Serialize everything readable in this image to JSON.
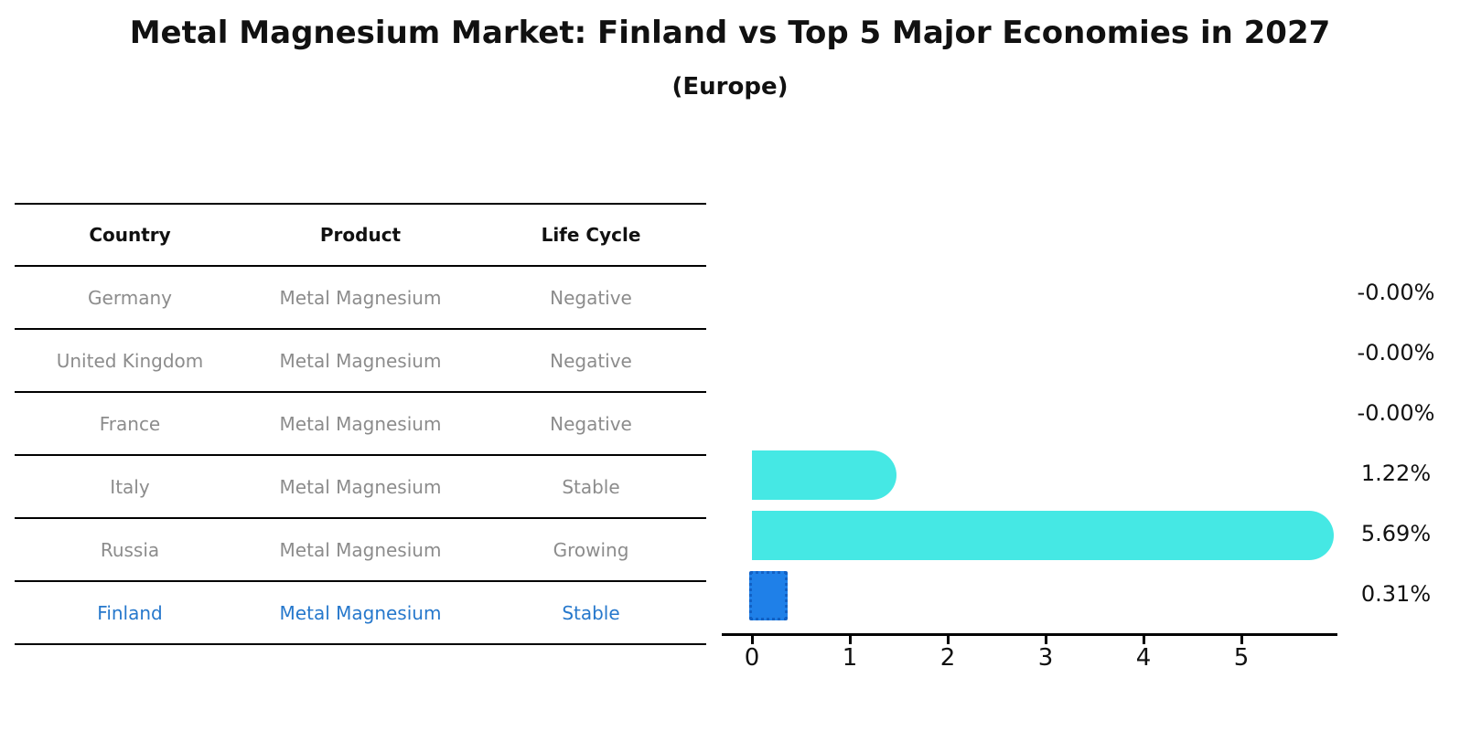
{
  "title": "Metal Magnesium Market: Finland vs Top 5 Major Economies in 2027",
  "subtitle": "(Europe)",
  "table": {
    "headers": [
      "Country",
      "Product",
      "Life Cycle"
    ],
    "rows": [
      {
        "country": "Germany",
        "product": "Metal Magnesium",
        "life_cycle": "Negative",
        "highlight": false
      },
      {
        "country": "United Kingdom",
        "product": "Metal Magnesium",
        "life_cycle": "Negative",
        "highlight": false
      },
      {
        "country": "France",
        "product": "Metal Magnesium",
        "life_cycle": "Negative",
        "highlight": false
      },
      {
        "country": "Italy",
        "product": "Metal Magnesium",
        "life_cycle": "Stable",
        "highlight": false
      },
      {
        "country": "Russia",
        "product": "Metal Magnesium",
        "life_cycle": "Growing",
        "highlight": false
      },
      {
        "country": "Finland",
        "product": "Metal Magnesium",
        "life_cycle": "Stable",
        "highlight": true
      }
    ]
  },
  "chart_data": {
    "type": "bar",
    "orientation": "horizontal",
    "title": "Metal Magnesium Market: Finland vs Top 5 Major Economies in 2027 (Europe)",
    "categories": [
      "Germany",
      "United Kingdom",
      "France",
      "Italy",
      "Russia",
      "Finland"
    ],
    "values": [
      -0.0,
      -0.0,
      -0.0,
      1.22,
      5.69,
      0.31
    ],
    "labels": [
      "-0.00%",
      "-0.00%",
      "-0.00%",
      "1.22%",
      "5.69%",
      "0.31%"
    ],
    "unit": "percent",
    "xticks": [
      0,
      1,
      2,
      3,
      4,
      5
    ],
    "xlim": [
      -0.3,
      6.0
    ],
    "grid": false,
    "legend": false,
    "highlight_index": 5
  },
  "colors": {
    "bar_cyan": "#45e8e4",
    "bar_blue": "#1f80e8",
    "bar_blue_border": "#1261c4",
    "highlight_text": "#2678cc",
    "row_text": "#8c8c8c",
    "header_text": "#111111",
    "axis": "#000000",
    "background": "#ffffff"
  }
}
